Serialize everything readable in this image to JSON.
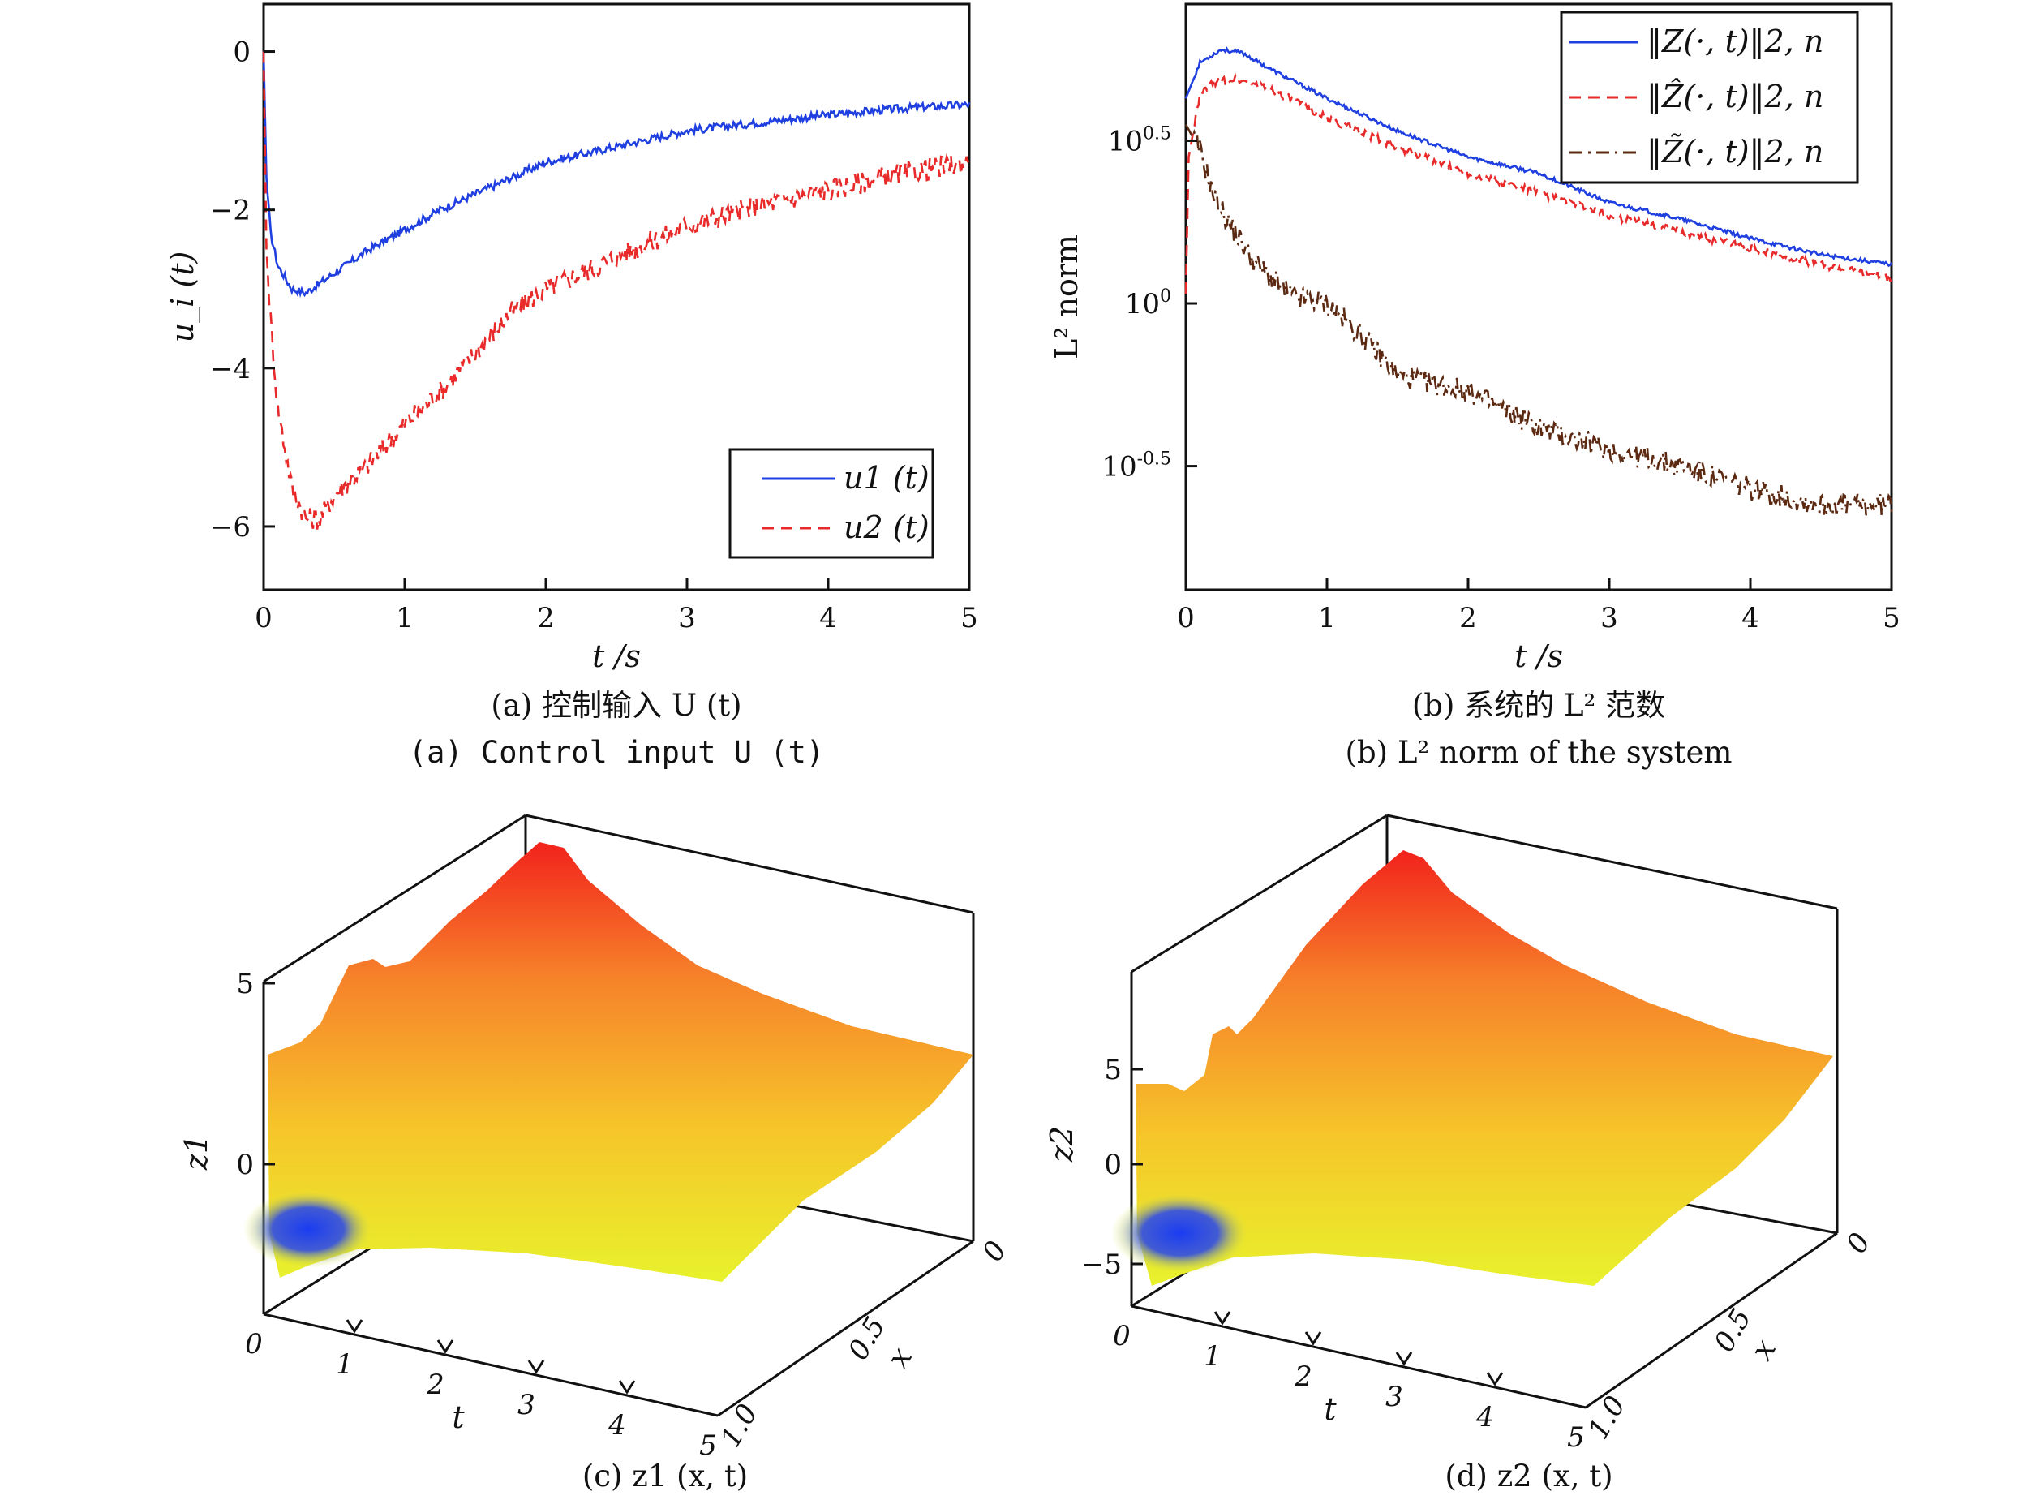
{
  "chart_data": [
    {
      "type": "line",
      "caption_cn": "(a) 控制输入 U (t)",
      "caption_en": "(a) Control input U (t)",
      "xlabel": "t /s",
      "ylabel": "u_i (t)",
      "xlim": [
        0,
        5
      ],
      "ylim": [
        -6.8,
        0.6
      ],
      "xticks": [
        "0",
        "1",
        "2",
        "3",
        "4",
        "5"
      ],
      "yticks": [
        "0",
        "−2",
        "−4",
        "−6"
      ],
      "legend_position": "bottom-right",
      "series": [
        {
          "name": "u1 (t)",
          "color": "#1f3fe0",
          "style": "solid",
          "x": [
            0,
            0.02,
            0.05,
            0.1,
            0.2,
            0.3,
            0.5,
            0.75,
            1.0,
            1.25,
            1.5,
            1.75,
            2.0,
            2.5,
            3.0,
            3.5,
            4.0,
            4.5,
            5.0
          ],
          "y": [
            0,
            -1.6,
            -2.3,
            -2.7,
            -3.0,
            -3.05,
            -2.8,
            -2.5,
            -2.25,
            -2.0,
            -1.8,
            -1.6,
            -1.4,
            -1.2,
            -1.0,
            -0.9,
            -0.8,
            -0.72,
            -0.67
          ]
        },
        {
          "name": "u2 (t)",
          "color": "#e82a2a",
          "style": "dashed",
          "x": [
            0,
            0.02,
            0.05,
            0.1,
            0.2,
            0.3,
            0.4,
            0.5,
            0.75,
            1.0,
            1.25,
            1.5,
            1.75,
            2.0,
            2.5,
            3.0,
            3.5,
            4.0,
            4.5,
            5.0
          ],
          "y": [
            0,
            -2.5,
            -3.4,
            -4.5,
            -5.5,
            -5.9,
            -5.9,
            -5.6,
            -5.2,
            -4.7,
            -4.3,
            -3.8,
            -3.3,
            -3.0,
            -2.6,
            -2.2,
            -1.95,
            -1.75,
            -1.55,
            -1.4
          ]
        }
      ]
    },
    {
      "type": "line",
      "caption_cn": "(b) 系统的 L² 范数",
      "caption_en": "(b) L² norm of the system",
      "xlabel": "t /s",
      "ylabel": "L² norm",
      "xlim": [
        0,
        5
      ],
      "ylim_log10": [
        -0.88,
        0.92
      ],
      "yscale": "log",
      "xticks": [
        "0",
        "1",
        "2",
        "3",
        "4",
        "5"
      ],
      "yticks": [
        "10^0.5",
        "10^0",
        "10^-0.5"
      ],
      "legend_position": "top-right",
      "series": [
        {
          "name": "‖Z(·, t)‖2, n",
          "color": "#1f3fe0",
          "style": "solid",
          "x": [
            0,
            0.1,
            0.25,
            0.4,
            0.6,
            1.0,
            1.5,
            2.0,
            2.5,
            3.0,
            3.5,
            4.0,
            4.5,
            5.0
          ],
          "y_log10": [
            0.63,
            0.74,
            0.78,
            0.77,
            0.72,
            0.63,
            0.53,
            0.45,
            0.4,
            0.31,
            0.26,
            0.2,
            0.15,
            0.12
          ]
        },
        {
          "name": "‖Ẑ(·, t)‖2, n",
          "color": "#e82a2a",
          "style": "dashed",
          "x": [
            0,
            0.02,
            0.1,
            0.2,
            0.35,
            0.6,
            1.0,
            1.5,
            2.0,
            2.5,
            3.0,
            3.5,
            4.0,
            4.5,
            5.0
          ],
          "y_log10": [
            0.03,
            0.45,
            0.64,
            0.68,
            0.69,
            0.66,
            0.57,
            0.48,
            0.4,
            0.34,
            0.27,
            0.22,
            0.17,
            0.12,
            0.08
          ]
        },
        {
          "name": "‖Z̃(·, t)‖2, n",
          "color": "#5c2a12",
          "style": "dashdot",
          "x": [
            0,
            0.1,
            0.2,
            0.3,
            0.5,
            0.75,
            1.0,
            1.25,
            1.5,
            2.0,
            2.5,
            3.0,
            3.5,
            4.0,
            4.5,
            5.0
          ],
          "y_log10": [
            0.55,
            0.47,
            0.33,
            0.25,
            0.12,
            0.02,
            0.0,
            -0.1,
            -0.22,
            -0.27,
            -0.38,
            -0.45,
            -0.5,
            -0.57,
            -0.62,
            -0.62
          ]
        }
      ]
    },
    {
      "type": "surface",
      "caption": "(c) z1 (x, t)",
      "xlabel": "t",
      "ylabel": "x",
      "zlabel": "z1",
      "t_ticks": [
        "0",
        "1",
        "2",
        "3",
        "4",
        "5"
      ],
      "x_ticks": [
        "0",
        "0.5",
        "1.0"
      ],
      "z_ticks": [
        "5",
        "0"
      ]
    },
    {
      "type": "surface",
      "caption": "(d) z2 (x, t)",
      "xlabel": "t",
      "ylabel": "x",
      "zlabel": "z2",
      "t_ticks": [
        "0",
        "1",
        "2",
        "3",
        "4",
        "5"
      ],
      "x_ticks": [
        "0",
        "0.5",
        "1.0"
      ],
      "z_ticks": [
        "5",
        "0",
        "−5"
      ]
    }
  ]
}
